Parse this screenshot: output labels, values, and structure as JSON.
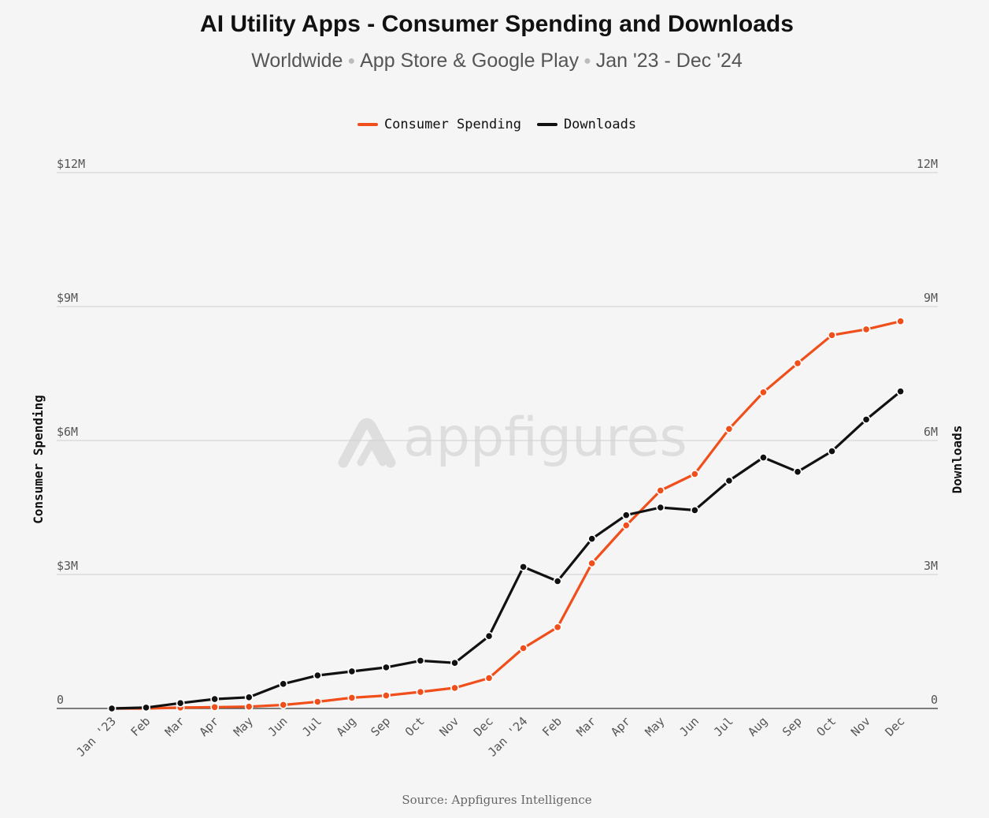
{
  "header": {
    "title": "AI Utility Apps - Consumer Spending and Downloads",
    "subtitle_parts": [
      "Worldwide",
      "App Store & Google Play",
      "Jan '23 - Dec '24"
    ]
  },
  "watermark": {
    "text": "appfigures"
  },
  "footer": {
    "source": "Source: Appfigures Intelligence"
  },
  "colors": {
    "spending": "#f04e1b",
    "downloads": "#111111",
    "grid": "#d0d0d0",
    "axis": "#555555"
  },
  "chart_data": {
    "type": "line",
    "title": "AI Utility Apps - Consumer Spending and Downloads",
    "legend_position": "top-center",
    "grid": true,
    "x": [
      "Jan '23",
      "Feb",
      "Mar",
      "Apr",
      "May",
      "Jun",
      "Jul",
      "Aug",
      "Sep",
      "Oct",
      "Nov",
      "Dec",
      "Jan '24",
      "Feb",
      "Mar",
      "Apr",
      "May",
      "Jun",
      "Jul",
      "Aug",
      "Sep",
      "Oct",
      "Nov",
      "Dec"
    ],
    "y_left": {
      "label": "Consumer Spending",
      "range": [
        0,
        12
      ],
      "ticks": [
        0,
        3,
        6,
        9,
        12
      ],
      "tick_labels": [
        "0",
        "$3M",
        "$6M",
        "$9M",
        "$12M"
      ]
    },
    "y_right": {
      "label": "Downloads",
      "range": [
        0,
        12
      ],
      "ticks": [
        0,
        3,
        6,
        9,
        12
      ],
      "tick_labels": [
        "0",
        "3M",
        "6M",
        "9M",
        "12M"
      ]
    },
    "series": [
      {
        "name": "Consumer Spending",
        "axis": "left",
        "color": "#f04e1b",
        "values": [
          0.0,
          0.0,
          0.02,
          0.03,
          0.04,
          0.08,
          0.15,
          0.24,
          0.29,
          0.37,
          0.46,
          0.68,
          1.35,
          1.82,
          3.25,
          4.1,
          4.88,
          5.25,
          6.26,
          7.08,
          7.73,
          8.36,
          8.49,
          8.67
        ]
      },
      {
        "name": "Downloads",
        "axis": "right",
        "color": "#111111",
        "values": [
          0.0,
          0.02,
          0.12,
          0.21,
          0.25,
          0.55,
          0.74,
          0.83,
          0.92,
          1.07,
          1.02,
          1.62,
          3.17,
          2.85,
          3.8,
          4.33,
          4.5,
          4.44,
          5.1,
          5.62,
          5.3,
          5.76,
          6.47,
          7.1
        ]
      }
    ]
  }
}
